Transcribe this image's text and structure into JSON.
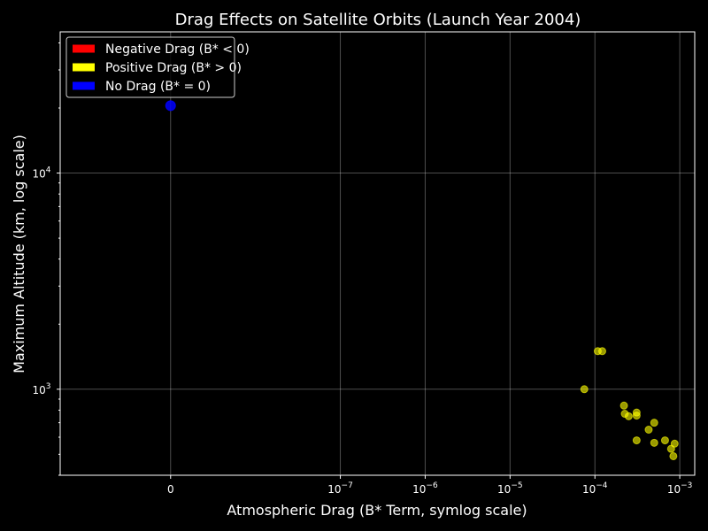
{
  "chart_data": {
    "type": "scatter",
    "title": "Drag Effects on Satellite Orbits (Launch Year 2004)",
    "xlabel": "Atmospheric Drag (B* Term, symlog scale)",
    "ylabel": "Maximum Altitude (km, log scale)",
    "x_scale": "symlog",
    "y_scale": "log",
    "xlim": [
      -2e-08,
      0.0015
    ],
    "ylim": [
      400,
      45000
    ],
    "grid": true,
    "legend_position": "top-left",
    "x_ticks": [
      {
        "value": 0,
        "base": "0",
        "exp": ""
      },
      {
        "value": 1e-07,
        "base": "10",
        "exp": "−7"
      },
      {
        "value": 1e-06,
        "base": "10",
        "exp": "−6"
      },
      {
        "value": 1e-05,
        "base": "10",
        "exp": "−5"
      },
      {
        "value": 0.0001,
        "base": "10",
        "exp": "−4"
      },
      {
        "value": 0.001,
        "base": "10",
        "exp": "−3"
      }
    ],
    "y_ticks": [
      {
        "value": 1000,
        "base": "10",
        "exp": "3"
      },
      {
        "value": 10000,
        "base": "10",
        "exp": "4"
      }
    ],
    "legend": [
      {
        "label": "Negative Drag (B* < 0)",
        "color": "#ff0000"
      },
      {
        "label": "Positive Drag (B* > 0)",
        "color": "#ffff00"
      },
      {
        "label": "No Drag (B* = 0)",
        "color": "#0000ff"
      }
    ],
    "series": [
      {
        "name": "Negative Drag (B* < 0)",
        "color": "#ff0000",
        "points": []
      },
      {
        "name": "Positive Drag (B* > 0)",
        "color": "#ffff00",
        "points": [
          {
            "x": 7.5e-05,
            "y": 1000
          },
          {
            "x": 0.000108,
            "y": 1500
          },
          {
            "x": 0.000122,
            "y": 1500
          },
          {
            "x": 0.00022,
            "y": 840
          },
          {
            "x": 0.000225,
            "y": 770
          },
          {
            "x": 0.00025,
            "y": 750
          },
          {
            "x": 0.00031,
            "y": 780
          },
          {
            "x": 0.00031,
            "y": 755
          },
          {
            "x": 0.00031,
            "y": 580
          },
          {
            "x": 0.00043,
            "y": 650
          },
          {
            "x": 0.0005,
            "y": 700
          },
          {
            "x": 0.0005,
            "y": 565
          },
          {
            "x": 0.00067,
            "y": 580
          },
          {
            "x": 0.00079,
            "y": 530
          },
          {
            "x": 0.00084,
            "y": 490
          },
          {
            "x": 0.00087,
            "y": 560
          }
        ]
      },
      {
        "name": "No Drag (B* = 0)",
        "color": "#0000ff",
        "points": [
          {
            "x": 0,
            "y": 20500
          }
        ]
      }
    ]
  }
}
